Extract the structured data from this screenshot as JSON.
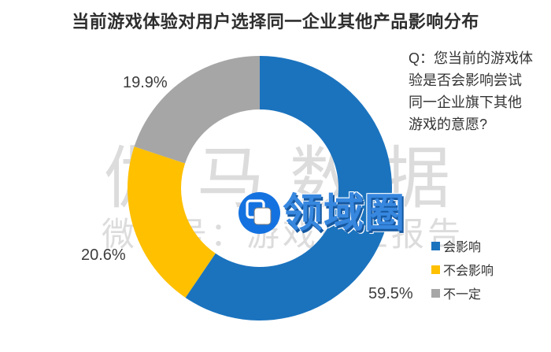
{
  "title": "当前游戏体验对用户选择同一企业其他产品影响分布",
  "question": {
    "lines": [
      "Q：您当前的游戏体",
      "验是否会影响尝试",
      "同一企业旗下其他",
      "游戏的意愿?"
    ]
  },
  "chart_data": {
    "type": "pie",
    "subtype": "donut",
    "title": "当前游戏体验对用户选择同一企业其他产品影响分布",
    "categories": [
      "会影响",
      "不会影响",
      "不一定"
    ],
    "values": [
      59.5,
      20.6,
      19.9
    ],
    "labels": [
      "59.5%",
      "20.6%",
      "19.9%"
    ],
    "colors": [
      "#1b73be",
      "#ffc000",
      "#a6a6a6"
    ],
    "start_angle": 0,
    "direction": "clockwise",
    "legend_position": "bottom-right",
    "hole": true
  },
  "legend": {
    "items": [
      {
        "label": "会影响",
        "color": "#1b73be"
      },
      {
        "label": "不会影响",
        "color": "#ffc000"
      },
      {
        "label": "不一定",
        "color": "#a6a6a6"
      }
    ]
  },
  "watermark": {
    "brand_text": "伽马数据",
    "wechat_text": "微信号：游戏产业报告",
    "logo_text": "领域圈",
    "logo_icon": "overlapping-squares-icon",
    "logo_blue": "#1472e0"
  }
}
